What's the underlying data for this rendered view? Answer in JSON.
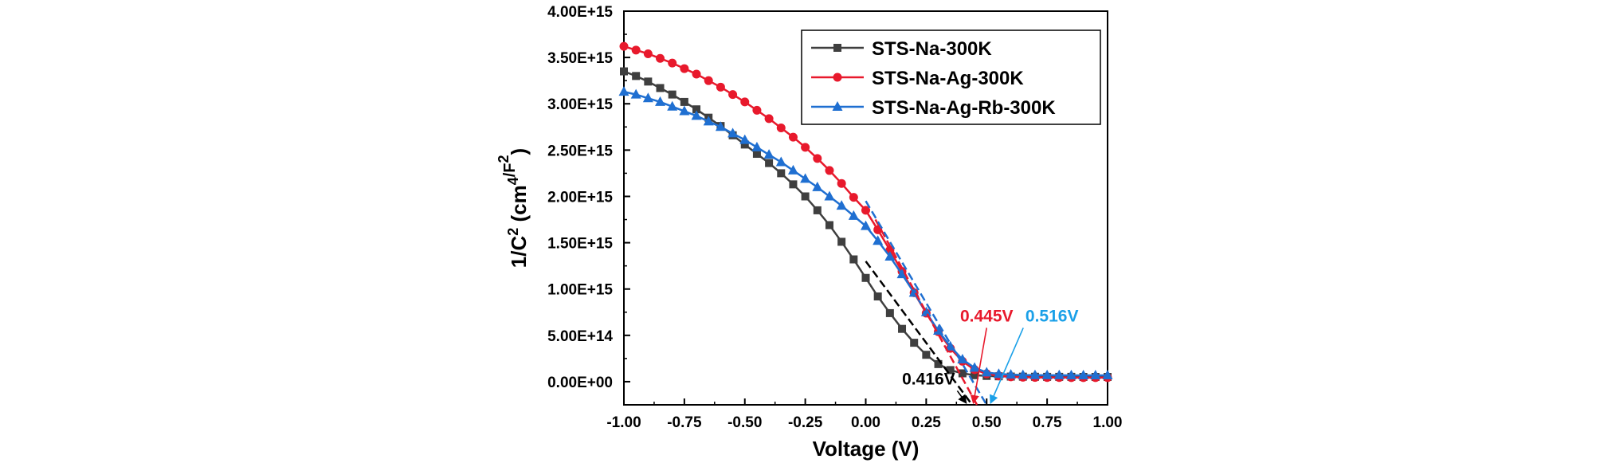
{
  "chart_data": {
    "type": "line",
    "xlabel": "Voltage (V)",
    "ylabel_parts": {
      "a": "1/C",
      "b": "2",
      "c": " (cm",
      "d": "4",
      "e": "/F",
      "f": "2",
      "g": ")"
    },
    "xlim": [
      -1.0,
      1.0
    ],
    "ylim": [
      -250000000000000.0,
      4000000000000000.0
    ],
    "xticks": [
      -1.0,
      -0.75,
      -0.5,
      -0.25,
      0.0,
      0.25,
      0.5,
      0.75,
      1.0
    ],
    "xtick_labels": [
      "-1.00",
      "-0.75",
      "-0.50",
      "-0.25",
      "0.00",
      "0.25",
      "0.50",
      "0.75",
      "1.00"
    ],
    "yticks": [
      0,
      500000000000000.0,
      1000000000000000.0,
      1500000000000000.0,
      2000000000000000.0,
      2500000000000000.0,
      3000000000000000.0,
      3500000000000000.0,
      4000000000000000.0
    ],
    "ytick_labels": [
      "0.00E+00",
      "5.00E+14",
      "1.00E+15",
      "1.50E+15",
      "2.00E+15",
      "2.50E+15",
      "3.00E+15",
      "3.50E+15",
      "4.00E+15"
    ],
    "grid": false,
    "legend_position": "top-right",
    "series": [
      {
        "name": "STS-Na-300K",
        "color": "#3f3f3f",
        "marker": "square",
        "x": [
          -1.0,
          -0.95,
          -0.9,
          -0.85,
          -0.8,
          -0.75,
          -0.7,
          -0.65,
          -0.6,
          -0.55,
          -0.5,
          -0.45,
          -0.4,
          -0.35,
          -0.3,
          -0.25,
          -0.2,
          -0.15,
          -0.1,
          -0.05,
          0.0,
          0.05,
          0.1,
          0.15,
          0.2,
          0.25,
          0.3,
          0.35,
          0.4,
          0.45,
          0.5,
          0.55,
          0.6,
          0.65,
          0.7,
          0.75,
          0.8,
          0.85,
          0.9,
          0.95,
          1.0
        ],
        "y": [
          3350000000000000.0,
          3300000000000000.0,
          3240000000000000.0,
          3170000000000000.0,
          3100000000000000.0,
          3020000000000000.0,
          2940000000000000.0,
          2850000000000000.0,
          2760000000000000.0,
          2660000000000000.0,
          2560000000000000.0,
          2460000000000000.0,
          2360000000000000.0,
          2250000000000000.0,
          2130000000000000.0,
          2000000000000000.0,
          1850000000000000.0,
          1690000000000000.0,
          1510000000000000.0,
          1320000000000000.0,
          1120000000000000.0,
          920000000000000.0,
          740000000000000.0,
          570000000000000.0,
          420000000000000.0,
          290000000000000.0,
          190000000000000.0,
          125000000000000.0,
          90000000000000.0,
          70000000000000.0,
          62000000000000.0,
          58000000000000.0,
          55000000000000.0,
          54000000000000.0,
          53000000000000.0,
          52000000000000.0,
          52000000000000.0,
          52000000000000.0,
          51000000000000.0,
          51000000000000.0,
          51000000000000.0
        ]
      },
      {
        "name": "STS-Na-Ag-300K",
        "color": "#e8192c",
        "marker": "circle",
        "x": [
          -1.0,
          -0.95,
          -0.9,
          -0.85,
          -0.8,
          -0.75,
          -0.7,
          -0.65,
          -0.6,
          -0.55,
          -0.5,
          -0.45,
          -0.4,
          -0.35,
          -0.3,
          -0.25,
          -0.2,
          -0.15,
          -0.1,
          -0.05,
          0.0,
          0.05,
          0.1,
          0.15,
          0.2,
          0.25,
          0.3,
          0.35,
          0.4,
          0.45,
          0.5,
          0.55,
          0.6,
          0.65,
          0.7,
          0.75,
          0.8,
          0.85,
          0.9,
          0.95,
          1.0
        ],
        "y": [
          3620000000000000.0,
          3580000000000000.0,
          3540000000000000.0,
          3490000000000000.0,
          3440000000000000.0,
          3380000000000000.0,
          3320000000000000.0,
          3250000000000000.0,
          3180000000000000.0,
          3100000000000000.0,
          3020000000000000.0,
          2930000000000000.0,
          2840000000000000.0,
          2740000000000000.0,
          2640000000000000.0,
          2530000000000000.0,
          2410000000000000.0,
          2280000000000000.0,
          2140000000000000.0,
          1990000000000000.0,
          1850000000000000.0,
          1640000000000000.0,
          1420000000000000.0,
          1190000000000000.0,
          960000000000000.0,
          740000000000000.0,
          540000000000000.0,
          360000000000000.0,
          220000000000000.0,
          130000000000000.0,
          85000000000000.0,
          62000000000000.0,
          52000000000000.0,
          48000000000000.0,
          46000000000000.0,
          45000000000000.0,
          45000000000000.0,
          44000000000000.0,
          44000000000000.0,
          44000000000000.0,
          44000000000000.0
        ]
      },
      {
        "name": "STS-Na-Ag-Rb-300K",
        "color": "#1f6fd1",
        "marker": "triangle",
        "x": [
          -1.0,
          -0.95,
          -0.9,
          -0.85,
          -0.8,
          -0.75,
          -0.7,
          -0.65,
          -0.6,
          -0.55,
          -0.5,
          -0.45,
          -0.4,
          -0.35,
          -0.3,
          -0.25,
          -0.2,
          -0.15,
          -0.1,
          -0.05,
          0.0,
          0.05,
          0.1,
          0.15,
          0.2,
          0.25,
          0.3,
          0.35,
          0.4,
          0.45,
          0.5,
          0.55,
          0.6,
          0.65,
          0.7,
          0.75,
          0.8,
          0.85,
          0.9,
          0.95,
          1.0
        ],
        "y": [
          3130000000000000.0,
          3100000000000000.0,
          3060000000000000.0,
          3020000000000000.0,
          2970000000000000.0,
          2920000000000000.0,
          2870000000000000.0,
          2810000000000000.0,
          2750000000000000.0,
          2680000000000000.0,
          2610000000000000.0,
          2530000000000000.0,
          2450000000000000.0,
          2370000000000000.0,
          2280000000000000.0,
          2190000000000000.0,
          2100000000000000.0,
          2000000000000000.0,
          1900000000000000.0,
          1790000000000000.0,
          1680000000000000.0,
          1520000000000000.0,
          1350000000000000.0,
          1160000000000000.0,
          960000000000000.0,
          750000000000000.0,
          550000000000000.0,
          380000000000000.0,
          240000000000000.0,
          150000000000000.0,
          100000000000000.0,
          83000000000000.0,
          76000000000000.0,
          72000000000000.0,
          70000000000000.0,
          69000000000000.0,
          69000000000000.0,
          68000000000000.0,
          68000000000000.0,
          68000000000000.0,
          68000000000000.0
        ]
      }
    ],
    "fit_lines": [
      {
        "color": "#000000",
        "x0": 0.0,
        "y0": 1300000000000000.0,
        "x1": 0.44,
        "y1": -250000000000000.0
      },
      {
        "color": "#e8192c",
        "x0": 0.04,
        "y0": 1750000000000000.0,
        "x1": 0.46,
        "y1": -250000000000000.0
      },
      {
        "color": "#1f6fd1",
        "x0": 0.0,
        "y0": 1950000000000000.0,
        "x1": 0.5,
        "y1": -250000000000000.0
      }
    ],
    "annotations": [
      {
        "text": "0.416V",
        "color": "#000000",
        "lx": 0.26,
        "ly": -30000000000000.0,
        "ax": 0.416,
        "ay": -250000000000000.0
      },
      {
        "text": "0.445V",
        "color": "#e8192c",
        "lx": 0.5,
        "ly": 650000000000000.0,
        "ax": 0.445,
        "ay": -250000000000000.0
      },
      {
        "text": "0.516V",
        "color": "#1aa0e8",
        "lx": 0.77,
        "ly": 650000000000000.0,
        "ax": 0.516,
        "ay": -250000000000000.0
      }
    ]
  }
}
